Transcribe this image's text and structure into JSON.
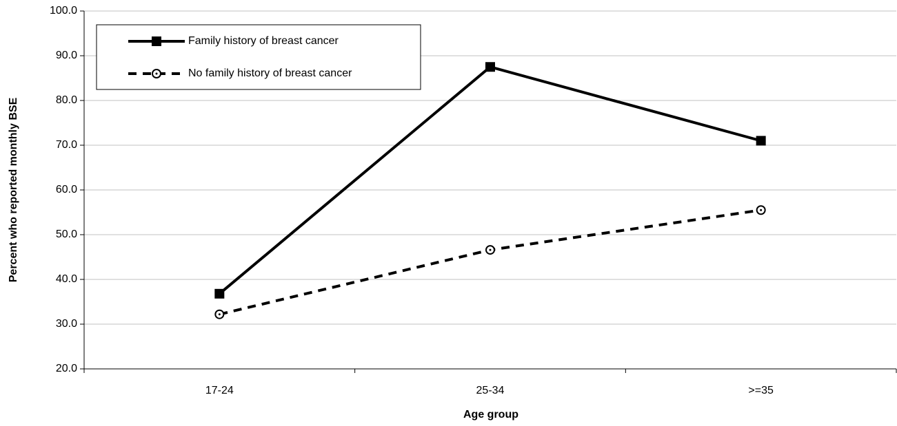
{
  "chart_data": {
    "type": "line",
    "x_label": "Age group",
    "y_label": "Percent who reported monthly BSE",
    "categories": [
      "17-24",
      "25-34",
      ">=35"
    ],
    "series": [
      {
        "name": "Family history of breast cancer",
        "color": "#000000",
        "line_style": "solid",
        "marker": "square",
        "values": [
          36.8,
          87.5,
          71.0
        ]
      },
      {
        "name": "No family history of breast cancer",
        "color": "#000000",
        "line_style": "dashed",
        "marker": "circle",
        "values": [
          32.2,
          46.6,
          55.5
        ]
      }
    ],
    "ylim": [
      20,
      100
    ],
    "yticks": [
      {
        "value": 20,
        "label": "20.0"
      },
      {
        "value": 30,
        "label": "30.0"
      },
      {
        "value": 40,
        "label": "40.0"
      },
      {
        "value": 50,
        "label": "50.0"
      },
      {
        "value": 60,
        "label": "60.0"
      },
      {
        "value": 70,
        "label": "70.0"
      },
      {
        "value": 80,
        "label": "80.0"
      },
      {
        "value": 90,
        "label": "90.0"
      },
      {
        "value": 100,
        "label": "100.0"
      }
    ],
    "grid": true,
    "legend": "top-left"
  }
}
